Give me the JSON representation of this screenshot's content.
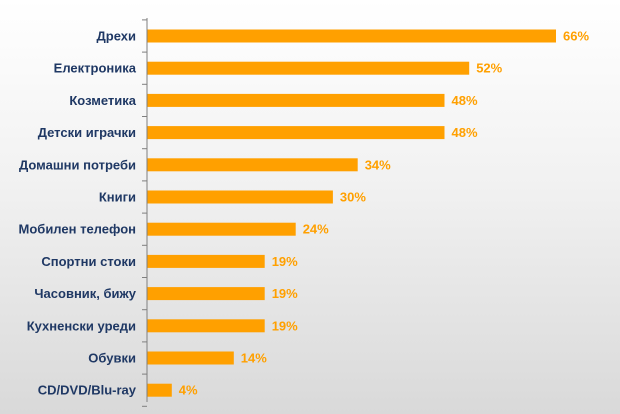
{
  "colors": {
    "bar": "#ffa000",
    "axis": "#7f7f7f",
    "category_text": "#1f3864",
    "value_text": "#ffa000"
  },
  "chart_data": {
    "type": "bar",
    "orientation": "horizontal",
    "categories": [
      "Дрехи",
      "Електроника",
      "Козметика",
      "Детски играчки",
      "Домашни потреби",
      "Книги",
      "Мобилен телефон",
      "Спортни стоки",
      "Часовник, бижу",
      "Кухненски уреди",
      "Обувки",
      "CD/DVD/Blu-ray"
    ],
    "values": [
      66,
      52,
      48,
      48,
      34,
      30,
      24,
      19,
      19,
      19,
      14,
      4
    ],
    "value_labels": [
      "66%",
      "52%",
      "48%",
      "48%",
      "34%",
      "30%",
      "24%",
      "19%",
      "19%",
      "19%",
      "14%",
      "4%"
    ],
    "unit": "%",
    "xlim": [
      0,
      70
    ],
    "grid": false,
    "legend": "none"
  }
}
